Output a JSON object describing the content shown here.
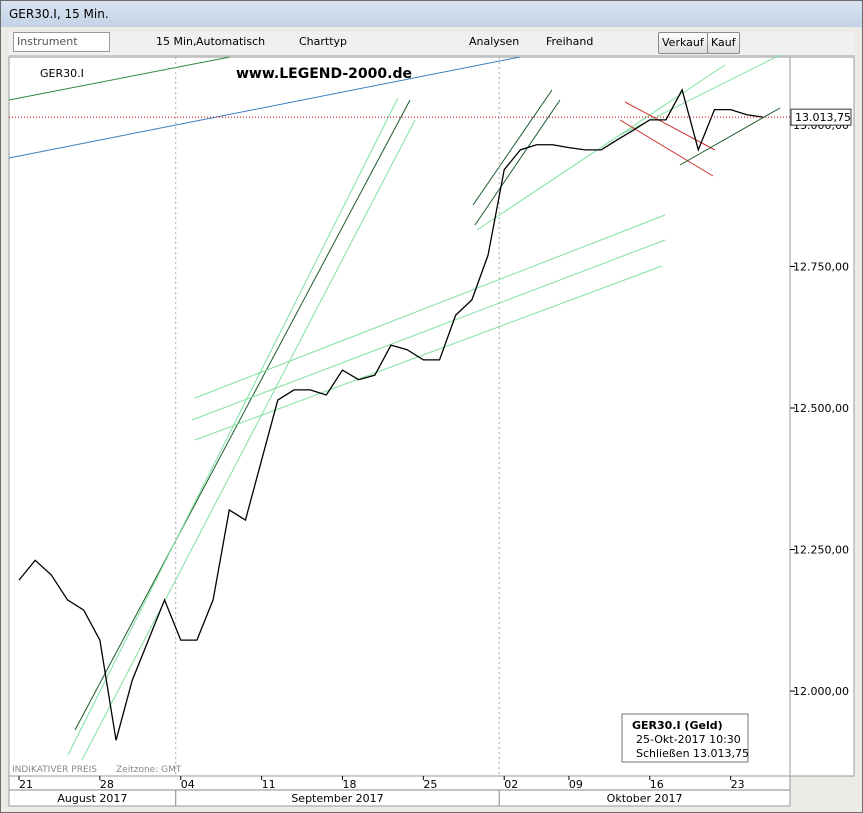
{
  "window": {
    "title": "GER30.I, 15 Min."
  },
  "toolbar": {
    "instrument": "Instrument",
    "interval": "15 Min,",
    "mode": "Automatisch",
    "chart_type": "Charttyp",
    "analyses": "Analysen",
    "freehand": "Freihand",
    "sell": "Verkauf",
    "buy": "Kauf"
  },
  "info": {
    "title": "GER30.I (Geld)",
    "datetime": "25-Okt-2017 10:30",
    "close_label": "Schließen",
    "close_value": "13.013,75"
  },
  "footer": {
    "price_note": "INDIKATIVER PREIS",
    "timezone": "Zeitzone: GMT"
  },
  "chart_data": {
    "type": "line",
    "legend": "GER30.I",
    "watermark": "www.LEGEND-2000.de",
    "x": [
      "2017-08-21",
      "2017-08-22",
      "2017-08-23",
      "2017-08-24",
      "2017-08-25",
      "2017-08-28",
      "2017-08-29",
      "2017-08-30",
      "2017-08-31",
      "2017-09-01",
      "2017-09-04",
      "2017-09-05",
      "2017-09-06",
      "2017-09-07",
      "2017-09-08",
      "2017-09-11",
      "2017-09-12",
      "2017-09-13",
      "2017-09-14",
      "2017-09-15",
      "2017-09-18",
      "2017-09-19",
      "2017-09-20",
      "2017-09-21",
      "2017-09-22",
      "2017-09-25",
      "2017-09-26",
      "2017-09-27",
      "2017-09-28",
      "2017-09-29",
      "2017-10-02",
      "2017-10-04",
      "2017-10-05",
      "2017-10-06",
      "2017-10-09",
      "2017-10-10",
      "2017-10-11",
      "2017-10-12",
      "2017-10-13",
      "2017-10-16",
      "2017-10-17",
      "2017-10-18",
      "2017-10-19",
      "2017-10-20",
      "2017-10-23",
      "2017-10-24",
      "2017-10-25"
    ],
    "series": [
      {
        "name": "GER30.I",
        "color": "#000000",
        "values": [
          12196,
          12231,
          12205,
          12161,
          12143,
          12090,
          11913,
          12019,
          12090,
          12161,
          12090,
          12090,
          12161,
          12320,
          12302,
          12408,
          12514,
          12532,
          12532,
          12523,
          12567,
          12550,
          12558,
          12611,
          12603,
          12585,
          12585,
          12664,
          12691,
          12770,
          12921,
          12956,
          12965,
          12965,
          12960,
          12956,
          12956,
          12974,
          12991,
          13009,
          13009,
          13062,
          12956,
          13027,
          13027,
          13018,
          13013.75
        ]
      }
    ],
    "xticks": [
      {
        "value": "2017-08-21",
        "label": "21"
      },
      {
        "value": "2017-08-28",
        "label": "28"
      },
      {
        "value": "2017-09-04",
        "label": "04"
      },
      {
        "value": "2017-09-11",
        "label": "11"
      },
      {
        "value": "2017-09-18",
        "label": "18"
      },
      {
        "value": "2017-09-25",
        "label": "25"
      },
      {
        "value": "2017-10-02",
        "label": "02"
      },
      {
        "value": "2017-10-09",
        "label": "09"
      },
      {
        "value": "2017-10-16",
        "label": "16"
      },
      {
        "value": "2017-10-23",
        "label": "23"
      }
    ],
    "months": [
      {
        "value": "2017-08-21",
        "label": "August 2017"
      },
      {
        "value": "2017-09-04",
        "label": "September 2017"
      },
      {
        "value": "2017-10-02",
        "label": "Oktober 2017"
      }
    ],
    "ylim": [
      11850,
      13120
    ],
    "yticks": [
      {
        "value": 12000,
        "label": "12.000,00"
      },
      {
        "value": 12250,
        "label": "12.250,00"
      },
      {
        "value": 12500,
        "label": "12.500,00"
      },
      {
        "value": 12750,
        "label": "12.750,00"
      },
      {
        "value": 13000,
        "label": "13.000,00"
      }
    ],
    "last_price": {
      "value": 13013.75,
      "label": "13.013,75"
    },
    "grid": false
  }
}
